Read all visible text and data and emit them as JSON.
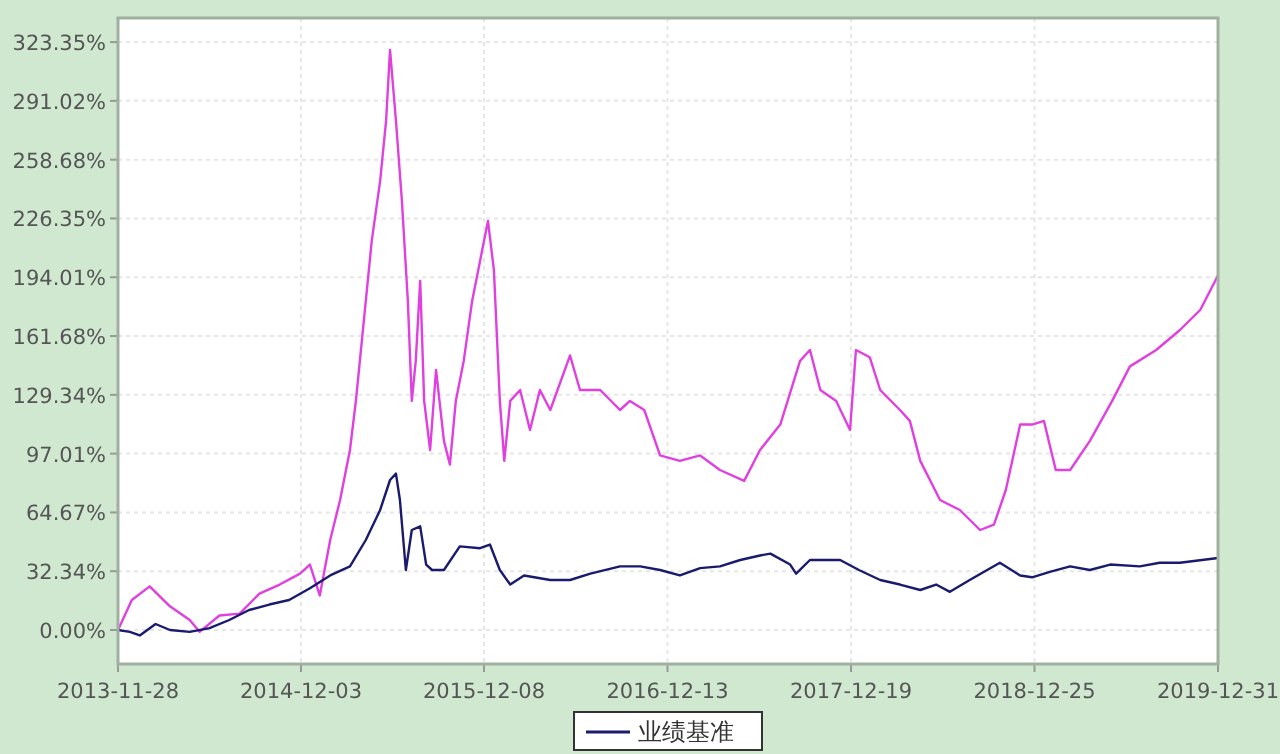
{
  "chart_data": {
    "type": "line",
    "x": [
      "2013-11-28",
      "2013-12-26",
      "2014-01-31",
      "2014-03-13",
      "2014-04-22",
      "2014-05-12",
      "2014-06-21",
      "2014-08-01",
      "2014-09-10",
      "2014-10-21",
      "2014-12-01",
      "2014-12-21",
      "2015-01-10",
      "2015-01-31",
      "2015-02-20",
      "2015-03-12",
      "2015-03-24",
      "2015-04-09",
      "2015-04-25",
      "2015-05-12",
      "2015-05-24",
      "2015-06-01",
      "2015-06-13",
      "2015-06-25",
      "2015-07-07",
      "2015-07-15",
      "2015-07-23",
      "2015-08-01",
      "2015-08-09",
      "2015-08-21",
      "2015-09-02",
      "2015-09-18",
      "2015-09-30",
      "2015-10-12",
      "2015-10-28",
      "2015-11-14",
      "2015-11-30",
      "2015-12-16",
      "2015-12-28",
      "2016-01-09",
      "2016-01-18",
      "2016-01-30",
      "2016-02-19",
      "2016-03-10",
      "2016-03-30",
      "2016-04-20",
      "2016-05-30",
      "2016-06-19",
      "2016-07-30",
      "2016-09-08",
      "2016-09-28",
      "2016-10-27",
      "2016-11-28",
      "2017-01-07",
      "2017-02-17",
      "2017-03-29",
      "2017-05-17",
      "2017-06-18",
      "2017-07-29",
      "2017-09-07",
      "2017-09-27",
      "2017-10-18",
      "2017-11-19",
      "2017-12-17",
      "2017-12-29",
      "2018-01-26",
      "2018-02-16",
      "2018-03-28",
      "2018-04-17",
      "2018-05-08",
      "2018-06-17",
      "2018-07-27",
      "2018-09-06",
      "2018-10-04",
      "2018-10-28",
      "2018-11-26",
      "2018-12-20",
      "2019-01-13",
      "2019-02-06",
      "2019-03-07",
      "2019-04-16",
      "2019-05-31",
      "2019-07-06",
      "2019-08-28",
      "2019-10-15",
      "2019-11-25",
      "2019-12-31"
    ],
    "series": [
      {
        "color": "#e040e0",
        "values": [
          0,
          16.5,
          24,
          13,
          5.5,
          -1,
          8,
          9,
          20,
          25,
          31,
          36,
          19,
          49.5,
          71.5,
          99,
          126,
          170,
          214,
          247,
          280,
          319,
          280,
          236,
          181,
          126,
          148,
          192,
          126,
          99,
          143,
          104,
          91,
          126,
          148,
          181,
          203,
          225,
          198,
          126,
          93,
          126,
          132,
          110,
          132,
          121,
          151,
          132,
          132,
          121,
          126,
          121,
          96,
          93,
          96,
          88,
          82,
          99,
          113,
          148,
          154,
          132,
          126,
          110,
          154,
          150,
          132,
          121,
          115,
          93,
          71.5,
          66,
          55,
          58,
          77,
          113,
          113,
          115,
          88,
          88,
          104,
          126,
          145,
          154,
          165,
          176,
          195
        ]
      },
      {
        "name": "业绩基准",
        "color": "#1a1a6e",
        "x": [
          "2013-11-28",
          "2013-12-22",
          "2014-01-11",
          "2014-02-12",
          "2014-03-13",
          "2014-04-22",
          "2014-06-01",
          "2014-07-11",
          "2014-08-20",
          "2014-09-30",
          "2014-11-09",
          "2014-12-21",
          "2015-01-31",
          "2015-03-12",
          "2015-04-13",
          "2015-05-12",
          "2015-06-01",
          "2015-06-13",
          "2015-06-21",
          "2015-07-03",
          "2015-07-15",
          "2015-08-01",
          "2015-08-13",
          "2015-08-25",
          "2015-09-18",
          "2015-10-20",
          "2015-11-30",
          "2015-12-20",
          "2016-01-09",
          "2016-01-30",
          "2016-02-27",
          "2016-04-20",
          "2016-05-30",
          "2016-07-10",
          "2016-09-08",
          "2016-10-19",
          "2016-11-28",
          "2017-01-07",
          "2017-02-17",
          "2017-03-29",
          "2017-05-09",
          "2017-06-18",
          "2017-07-09",
          "2017-08-18",
          "2017-08-30",
          "2017-09-27",
          "2017-11-27",
          "2018-01-04",
          "2018-02-16",
          "2018-03-28",
          "2018-05-08",
          "2018-06-09",
          "2018-07-07",
          "2018-08-16",
          "2018-10-16",
          "2018-11-26",
          "2018-12-20",
          "2019-01-25",
          "2019-03-07",
          "2019-04-16",
          "2019-05-27",
          "2019-07-26",
          "2019-09-04",
          "2019-10-15",
          "2019-12-31"
        ],
        "values": [
          0,
          -1,
          -3,
          3.3,
          0,
          -1,
          1,
          5.5,
          11,
          14,
          16.5,
          23,
          30,
          35,
          49.5,
          66,
          82.5,
          86,
          71.5,
          33,
          55,
          57,
          36,
          33,
          33,
          46,
          45,
          47,
          33,
          25,
          30,
          27.5,
          27.5,
          31,
          35,
          35,
          33,
          30,
          34,
          35,
          38.5,
          41,
          42,
          36,
          31,
          38.5,
          38.5,
          33,
          27.5,
          25,
          22,
          25,
          21,
          27.5,
          37,
          30,
          29,
          32,
          35,
          33,
          36,
          35,
          37,
          37,
          39.6
        ]
      }
    ],
    "xlim": [
      "2013-11-28",
      "2019-12-31"
    ],
    "xticks": [
      {
        "value": "2013-11-28",
        "label": "2013-11-28"
      },
      {
        "value": "2014-12-03",
        "label": "2014-12-03"
      },
      {
        "value": "2015-12-08",
        "label": "2015-12-08"
      },
      {
        "value": "2016-12-13",
        "label": "2016-12-13"
      },
      {
        "value": "2017-12-19",
        "label": "2017-12-19"
      },
      {
        "value": "2018-12-25",
        "label": "2018-12-25"
      },
      {
        "value": "2019-12-31",
        "label": "2019-12-31"
      }
    ],
    "ylim": [
      -18.7,
      336.6
    ],
    "yticks": [
      {
        "value": 0,
        "label": "0.00%"
      },
      {
        "value": 32.34,
        "label": "32.34%"
      },
      {
        "value": 64.67,
        "label": "64.67%"
      },
      {
        "value": 97.01,
        "label": "97.01%"
      },
      {
        "value": 129.34,
        "label": "129.34%"
      },
      {
        "value": 161.68,
        "label": "161.68%"
      },
      {
        "value": 194.01,
        "label": "194.01%"
      },
      {
        "value": 226.35,
        "label": "226.35%"
      },
      {
        "value": 258.68,
        "label": "258.68%"
      },
      {
        "value": 291.02,
        "label": "291.02%"
      },
      {
        "value": 323.35,
        "label": "323.35%"
      }
    ],
    "grid": true,
    "legend": "bottom",
    "line_style": "solid",
    "marker": "none"
  }
}
